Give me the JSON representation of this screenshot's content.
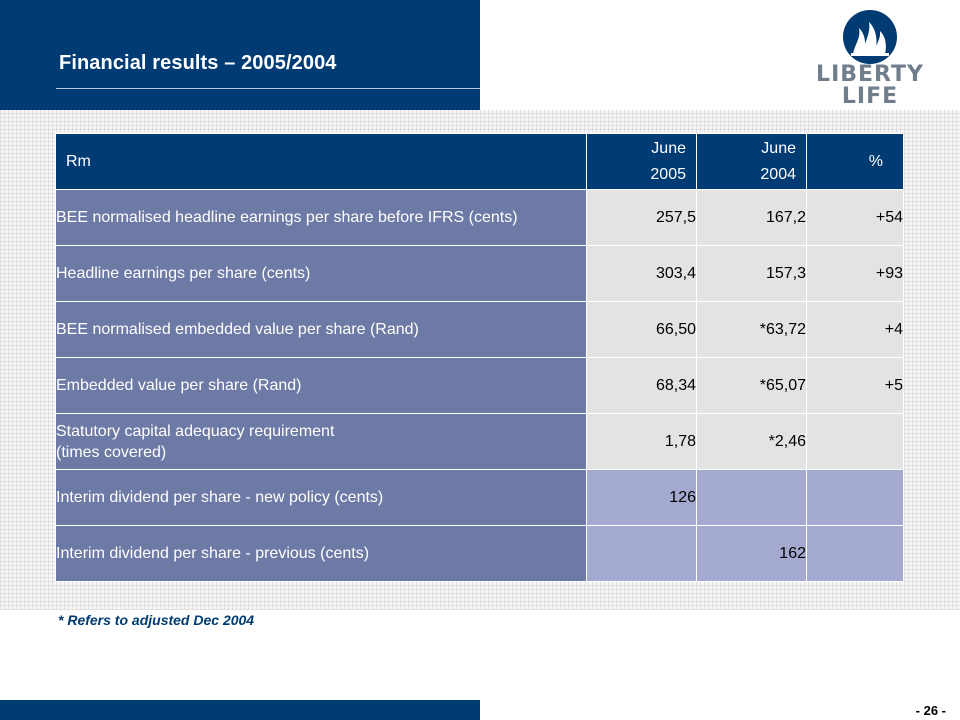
{
  "header": {
    "title": "Financial results – 2005/2004"
  },
  "logo": {
    "line1": "LIBERTY",
    "line2": "LIFE",
    "icon": "flame-emblem-icon"
  },
  "table": {
    "columns": {
      "label": "Rm",
      "col1_line1": "June",
      "col1_line2": "2005",
      "col2_line1": "June",
      "col2_line2": "2004",
      "pct": "%"
    },
    "rows": [
      {
        "label": "BEE normalised headline earnings per share before IFRS (cents)",
        "v2005": "257,5",
        "v2004": "167,2",
        "pct": "+54"
      },
      {
        "label": "Headline earnings per share (cents)",
        "v2005": "303,4",
        "v2004": "157,3",
        "pct": "+93"
      },
      {
        "label": "BEE normalised embedded value per share (Rand)",
        "v2005": "66,50",
        "v2004": "*63,72",
        "pct": "+4"
      },
      {
        "label": "Embedded value per share (Rand)",
        "v2005": "68,34",
        "v2004": "*65,07",
        "pct": "+5"
      },
      {
        "label_line1": "Statutory capital adequacy requirement",
        "label_line2": "(times covered)",
        "v2005": "1,78",
        "v2004": "*2,46",
        "pct": ""
      },
      {
        "label": "Interim dividend per share - new policy (cents)",
        "v2005": "126",
        "v2004": "",
        "pct": ""
      },
      {
        "label": "Interim dividend per share - previous (cents)",
        "v2005": "",
        "v2004": "162",
        "pct": ""
      }
    ]
  },
  "footnote": "*  Refers to adjusted Dec 2004",
  "page_number": "- 26 -",
  "colors": {
    "navy": "#003b73",
    "label_cell": "#6e7aa6",
    "value_cell": "#e3e3e3",
    "lavender_cell": "#a4aacf"
  }
}
